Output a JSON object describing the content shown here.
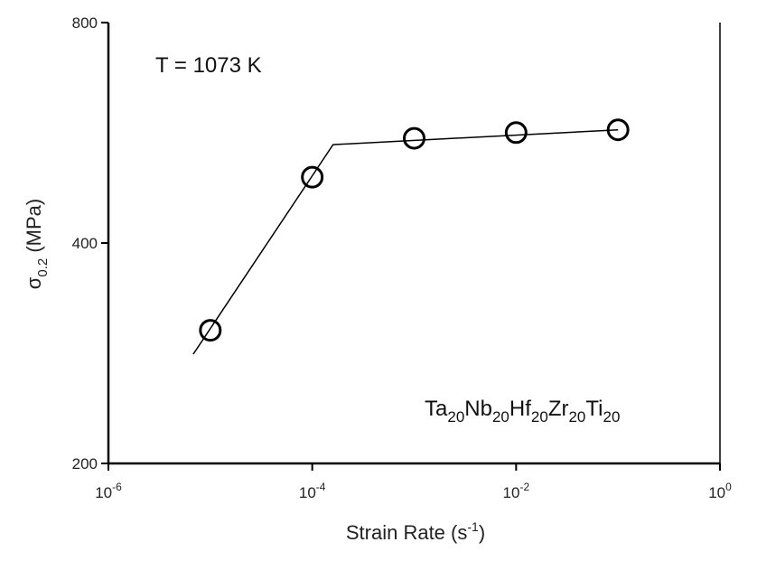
{
  "chart_data": {
    "type": "scatter",
    "xscale": "log",
    "yscale": "log",
    "xlim": [
      1e-06,
      1
    ],
    "ylim": [
      200,
      800
    ],
    "x_ticks": [
      {
        "value": 1e-06,
        "base": "10",
        "exp": "-6"
      },
      {
        "value": 0.0001,
        "base": "10",
        "exp": "-4"
      },
      {
        "value": 0.01,
        "base": "10",
        "exp": "-2"
      },
      {
        "value": 1,
        "base": "10",
        "exp": "0"
      }
    ],
    "y_ticks": [
      {
        "value": 200,
        "label": "200"
      },
      {
        "value": 400,
        "label": "400"
      },
      {
        "value": 800,
        "label": "800"
      }
    ],
    "xlabel": {
      "main": "Strain Rate  (s",
      "sup": "-1",
      "close": ")"
    },
    "ylabel": {
      "symbol": "σ",
      "sub": "0.2",
      "rest": "  (MPa)"
    },
    "series": [
      {
        "marker": "open-circle",
        "points": [
          {
            "x": 1e-05,
            "y": 304
          },
          {
            "x": 0.0001,
            "y": 492
          },
          {
            "x": 0.001,
            "y": 556
          },
          {
            "x": 0.01,
            "y": 566
          },
          {
            "x": 0.1,
            "y": 571
          }
        ]
      }
    ],
    "fit_lines": [
      {
        "points": [
          {
            "x": 6.8e-06,
            "y": 282
          },
          {
            "x": 0.00016,
            "y": 545
          },
          {
            "x": 0.1,
            "y": 571
          }
        ]
      }
    ],
    "annotations": {
      "temperature": "T = 1073 K",
      "alloy": [
        {
          "el": "Ta",
          "sub": "20"
        },
        {
          "el": "Nb",
          "sub": "20"
        },
        {
          "el": "Hf",
          "sub": "20"
        },
        {
          "el": "Zr",
          "sub": "20"
        },
        {
          "el": "Ti",
          "sub": "20"
        }
      ]
    },
    "grid": false,
    "legend": "none",
    "colors": {
      "line": "#000000",
      "marker": "#000000",
      "axis": "#000000"
    }
  }
}
